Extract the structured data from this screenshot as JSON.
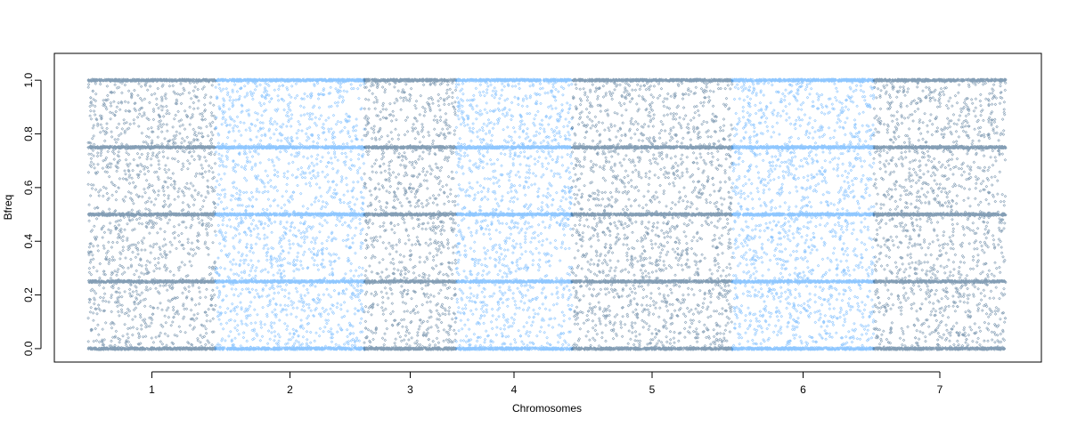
{
  "chart_data": {
    "type": "scatter",
    "title": "",
    "xlabel": "Chromosomes",
    "ylabel": "Bfreq",
    "ylim": [
      -0.05,
      1.1
    ],
    "yticks": [
      0.0,
      0.2,
      0.4,
      0.6,
      0.8,
      1.0
    ],
    "ytick_labels": [
      "0.0",
      "0.2",
      "0.4",
      "0.6",
      "0.8",
      "1.0"
    ],
    "grid": false,
    "legend": "none",
    "genotype_levels": [
      0.0,
      0.25,
      0.5,
      0.75,
      1.0
    ],
    "point_shape": "open-diamond",
    "colors": {
      "dark": "#1f4e79",
      "light": "#3399ff"
    },
    "chromosomes": [
      {
        "label": "1",
        "color": "dark"
      },
      {
        "label": "2",
        "color": "light"
      },
      {
        "label": "3",
        "color": "dark"
      },
      {
        "label": "4",
        "color": "light"
      },
      {
        "label": "5",
        "color": "dark"
      },
      {
        "label": "6",
        "color": "light"
      },
      {
        "label": "7",
        "color": "dark"
      }
    ]
  }
}
